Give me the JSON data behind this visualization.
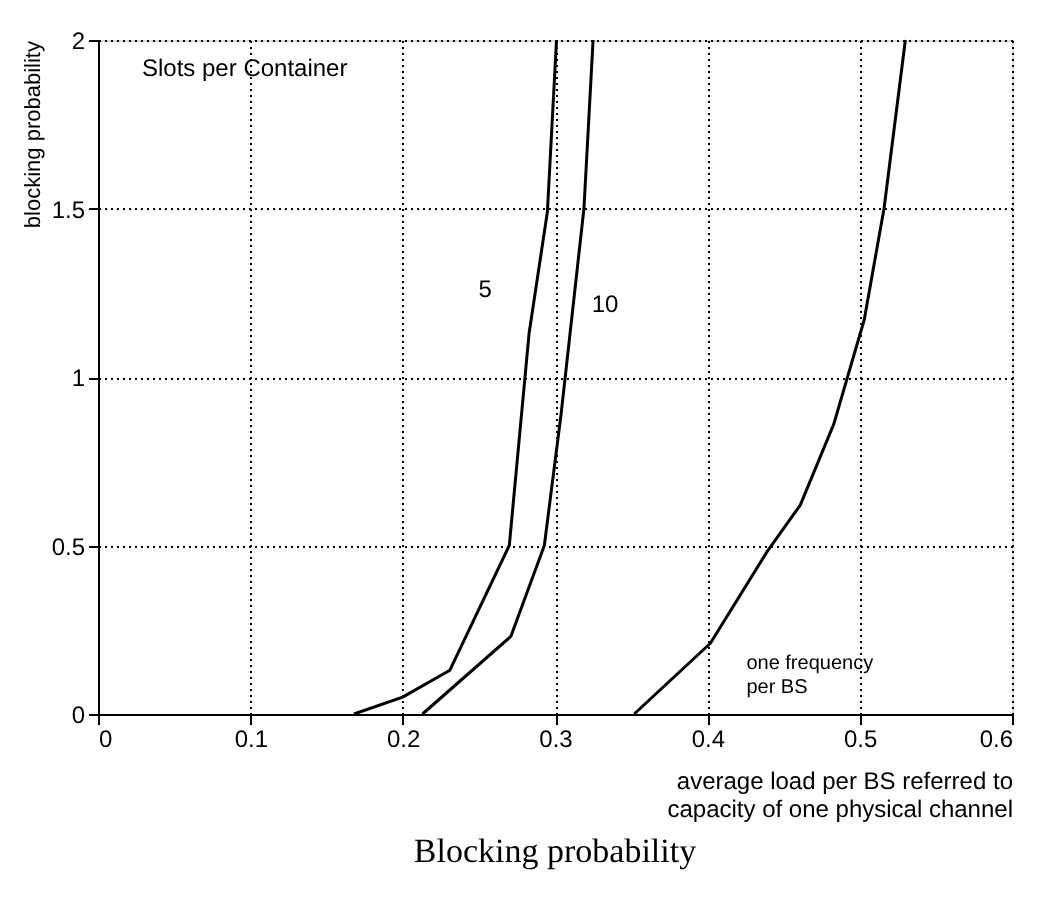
{
  "chart_data": {
    "type": "line",
    "title": "Blocking probability",
    "xlabel": "average load per BS referred to capacity of one physical channel",
    "ylabel": "blocking probability",
    "annotations": [
      "Slots per Container"
    ],
    "series": [
      {
        "name": "5",
        "color": "#000000",
        "x": [
          0.168,
          0.2,
          0.231,
          0.27,
          0.283,
          0.295,
          0.301
        ],
        "values": [
          0,
          0.05,
          0.13,
          0.5,
          1.13,
          1.49,
          2
        ]
      },
      {
        "name": "10",
        "color": "#000000",
        "x": [
          0.213,
          0.271,
          0.293,
          0.304,
          0.319,
          0.325
        ],
        "values": [
          0,
          0.23,
          0.5,
          0.89,
          1.5,
          2
        ]
      },
      {
        "name": "one frequency per BS",
        "color": "#000000",
        "x": [
          0.352,
          0.402,
          0.439,
          0.461,
          0.483,
          0.503,
          0.516,
          0.53
        ],
        "values": [
          0,
          0.21,
          0.48,
          0.62,
          0.86,
          1.17,
          1.5,
          2
        ]
      }
    ],
    "xlim": [
      0,
      0.6
    ],
    "xticks": [
      0,
      0.1,
      0.2,
      0.3,
      0.4,
      0.5,
      0.6
    ],
    "ylim": [
      0,
      2
    ],
    "yticks": [
      0,
      0.5,
      1,
      1.5,
      2
    ],
    "grid": true,
    "marker": "none",
    "line_style": "solid"
  }
}
